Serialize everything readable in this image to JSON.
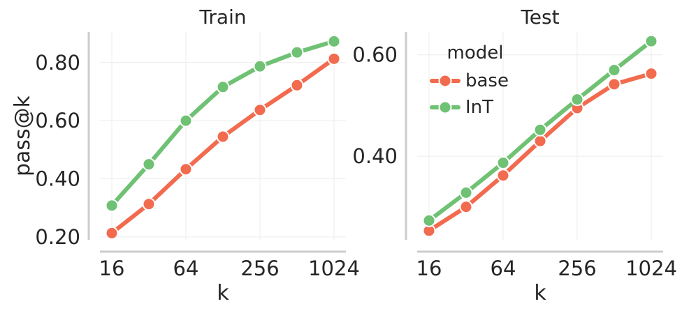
{
  "chart_data": [
    {
      "type": "line",
      "title": "Train",
      "xlabel": "k",
      "ylabel": "pass@k",
      "x_scale": "log2",
      "x": [
        16,
        32,
        64,
        128,
        256,
        512,
        1024
      ],
      "xticks": [
        16,
        64,
        256,
        1024
      ],
      "xtick_labels": [
        "16",
        "64",
        "256",
        "1024"
      ],
      "yticks": [
        0.2,
        0.4,
        0.6,
        0.8
      ],
      "ytick_labels": [
        "0.20",
        "0.40",
        "0.60",
        "0.80"
      ],
      "ylim": [
        0.19,
        0.905
      ],
      "grid": true,
      "series": [
        {
          "name": "base",
          "color": "#f26b4f",
          "values": [
            0.213,
            0.313,
            0.433,
            0.545,
            0.637,
            0.722,
            0.813
          ]
        },
        {
          "name": "InT",
          "color": "#6fc173",
          "values": [
            0.308,
            0.45,
            0.6,
            0.716,
            0.787,
            0.835,
            0.873
          ]
        }
      ]
    },
    {
      "type": "line",
      "title": "Test",
      "xlabel": "k",
      "ylabel": "",
      "x_scale": "log2",
      "x": [
        16,
        32,
        64,
        128,
        256,
        512,
        1024
      ],
      "xticks": [
        16,
        64,
        256,
        1024
      ],
      "xtick_labels": [
        "16",
        "64",
        "256",
        "1024"
      ],
      "yticks": [
        0.4,
        0.6
      ],
      "ytick_labels": [
        "0.40",
        "0.60"
      ],
      "ylim": [
        0.235,
        0.645
      ],
      "grid": true,
      "legend": {
        "title": "model",
        "position": "top-left"
      },
      "series": [
        {
          "name": "base",
          "color": "#f26b4f",
          "values": [
            0.253,
            0.3,
            0.362,
            0.43,
            0.495,
            0.542,
            0.563
          ]
        },
        {
          "name": "InT",
          "color": "#6fc173",
          "values": [
            0.273,
            0.328,
            0.387,
            0.452,
            0.512,
            0.57,
            0.627
          ]
        }
      ]
    }
  ]
}
